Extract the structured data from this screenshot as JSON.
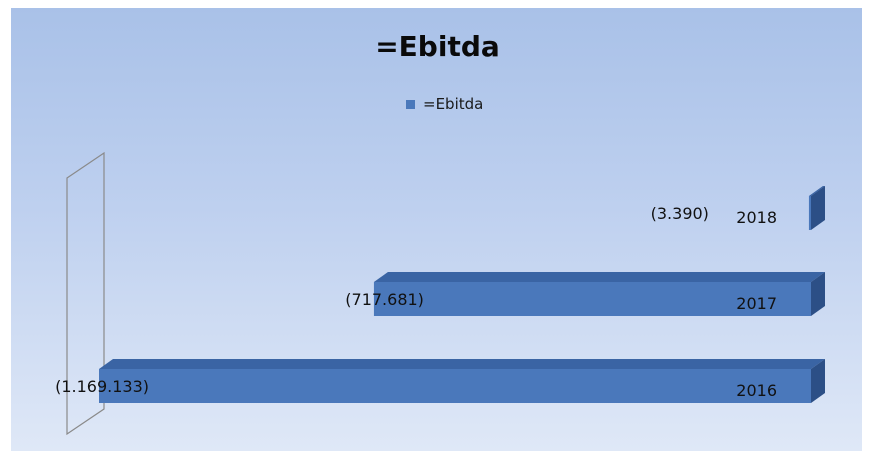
{
  "chart_data": {
    "type": "bar",
    "orientation": "horizontal",
    "title": "=Ebitda",
    "legend": {
      "position": "top",
      "entries": [
        "=Ebitda"
      ]
    },
    "categories": [
      "2016",
      "2017",
      "2018"
    ],
    "series": [
      {
        "name": "=Ebitda",
        "values": [
          -1169133,
          -717681,
          -3390
        ],
        "labels": [
          "(1.169.133)",
          "(717.681)",
          "(3.390)"
        ]
      }
    ],
    "xlim": [
      -1169133,
      0
    ],
    "grid": false,
    "colors": {
      "bar_front": "#4a78bb",
      "bar_top": "#3a64a4",
      "bar_side": "#2c4f86",
      "legend_swatch": "#4a78bb"
    }
  }
}
